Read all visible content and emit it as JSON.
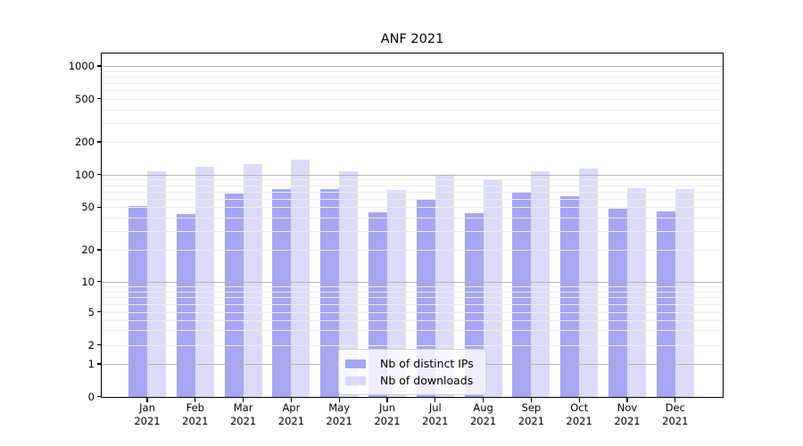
{
  "chart_data": {
    "type": "bar",
    "title": "ANF 2021",
    "yscale": "symlog",
    "grid": "on",
    "ylim": [
      0,
      1400
    ],
    "y_ticks": [
      0,
      1,
      2,
      5,
      10,
      20,
      50,
      100,
      200,
      500,
      1000
    ],
    "legend_position": "lower center",
    "categories": [
      {
        "label": "Jan",
        "sub": "2021"
      },
      {
        "label": "Feb",
        "sub": "2021"
      },
      {
        "label": "Mar",
        "sub": "2021"
      },
      {
        "label": "Apr",
        "sub": "2021"
      },
      {
        "label": "May",
        "sub": "2021"
      },
      {
        "label": "Jun",
        "sub": "2021"
      },
      {
        "label": "Jul",
        "sub": "2021"
      },
      {
        "label": "Aug",
        "sub": "2021"
      },
      {
        "label": "Sep",
        "sub": "2021"
      },
      {
        "label": "Oct",
        "sub": "2021"
      },
      {
        "label": "Nov",
        "sub": "2021"
      },
      {
        "label": "Dec",
        "sub": "2021"
      }
    ],
    "series": [
      {
        "name": "Nb of distinct IPs",
        "color": "#a6a6f2",
        "values": [
          51,
          43,
          67,
          74,
          74,
          45,
          60,
          44,
          69,
          63,
          48,
          46
        ]
      },
      {
        "name": "Nb of downloads",
        "color": "#dbdbf9",
        "values": [
          108,
          117,
          125,
          138,
          107,
          72,
          100,
          88,
          108,
          114,
          75,
          73
        ]
      }
    ],
    "colors": {
      "grid_major": "#b4b4b4",
      "grid_minor": "#ebebeb",
      "axis": "#000000",
      "text": "#000000",
      "legend_border": "#cccccc",
      "background": "#ffffff"
    }
  }
}
